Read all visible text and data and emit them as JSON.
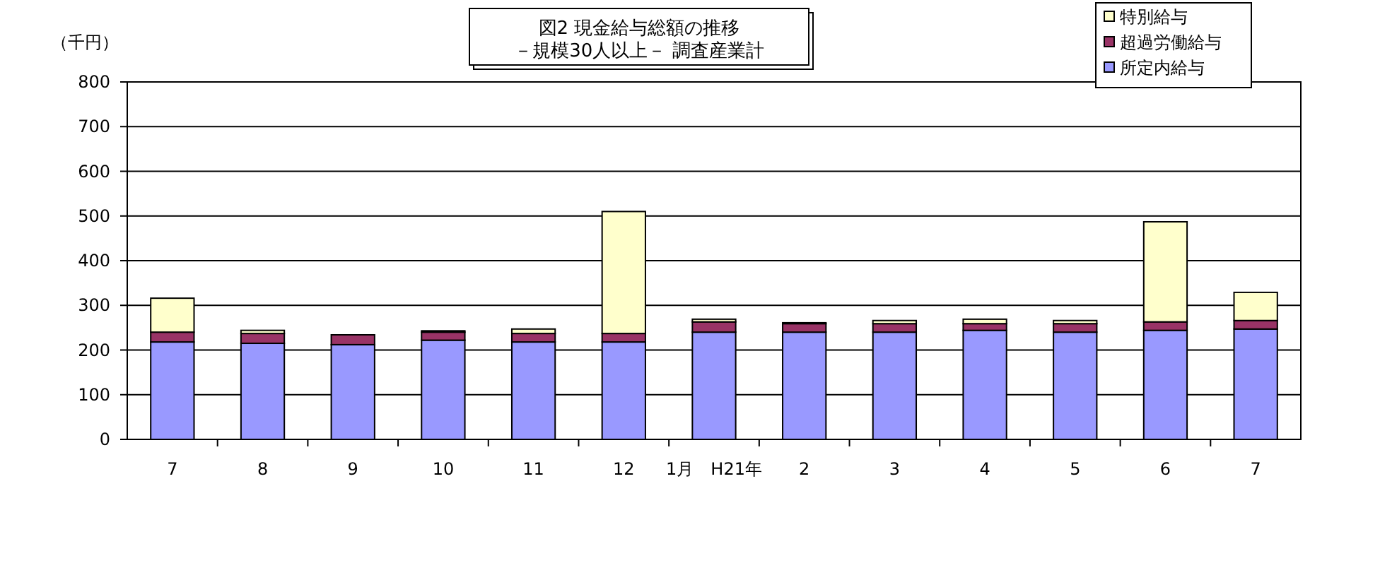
{
  "chart_data": {
    "type": "bar",
    "stacked": true,
    "title": "図2 現金給与総額の推移",
    "subtitle": "－規模30人以上－ 調査産業計",
    "ylabel": "（千円）",
    "categories": [
      "7",
      "8",
      "9",
      "10",
      "11",
      "12",
      "1月　H21年",
      "2",
      "3",
      "4",
      "5",
      "6",
      "7"
    ],
    "series": [
      {
        "name": "所定内給与",
        "color": "#9999ff",
        "values": [
          218,
          215,
          212,
          222,
          218,
          218,
          240,
          240,
          240,
          244,
          240,
          244,
          247
        ]
      },
      {
        "name": "超過労働給与",
        "color": "#993366",
        "values": [
          22,
          22,
          22,
          18,
          19,
          19,
          23,
          19,
          19,
          15,
          19,
          19,
          19
        ]
      },
      {
        "name": "特別給与",
        "color": "#ffffcc",
        "values": [
          76,
          7,
          0,
          3,
          10,
          273,
          6,
          2,
          7,
          10,
          7,
          224,
          63
        ]
      }
    ],
    "ylim": [
      0,
      800
    ],
    "yticks": [
      0,
      100,
      200,
      300,
      400,
      500,
      600,
      700,
      800
    ],
    "grid": "y",
    "legend": "top right"
  }
}
